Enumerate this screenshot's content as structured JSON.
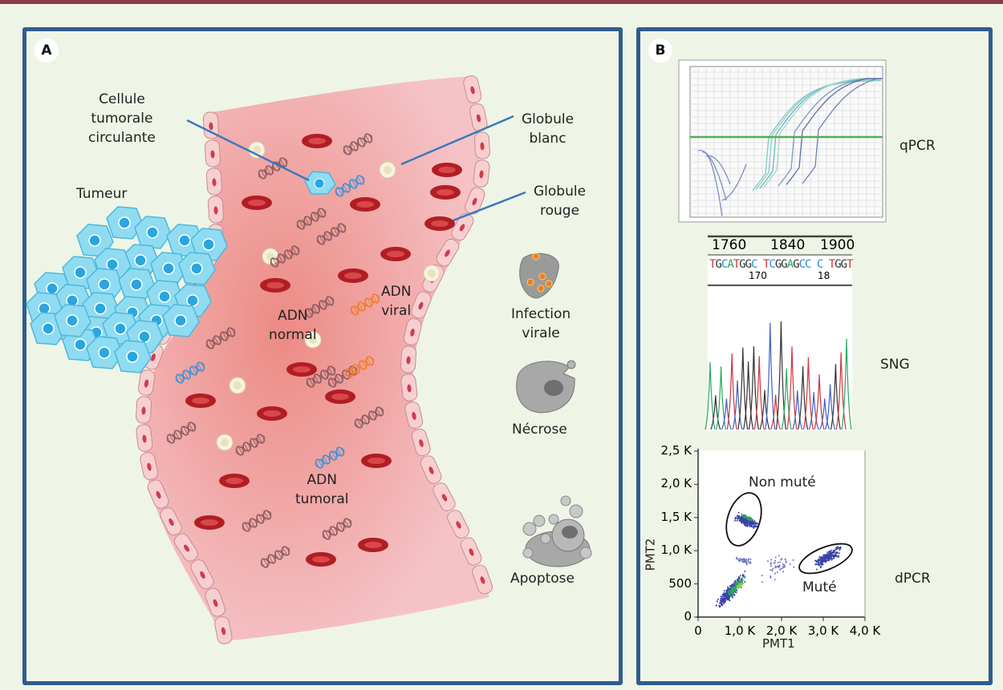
{
  "panel_a": {
    "badge": "A",
    "labels": {
      "ctc": [
        "Cellule",
        "tumorale",
        "circulante"
      ],
      "tumor": "Tumeur",
      "wbc": [
        "Globule",
        "blanc"
      ],
      "rbc": [
        "Globule",
        "rouge"
      ],
      "dna_normal": [
        "ADN",
        "normal"
      ],
      "dna_viral": [
        "ADN",
        "viral"
      ],
      "dna_tumor": [
        "ADN",
        "tumoral"
      ],
      "infection": [
        "Infection",
        "virale"
      ],
      "necrosis": "Nécrose",
      "apoptosis": "Apoptose"
    },
    "colors": {
      "vessel": "#f1b4b8",
      "rbc": "#b01e24",
      "tumor_cell": "#7fd3ec",
      "callout_line": "#3a78c0",
      "dna_viral": "#f07b2a",
      "dna_tumor": "#3f8fd6"
    }
  },
  "panel_b": {
    "badge": "B",
    "qpcr_label": "qPCR",
    "sng_label": "SNG",
    "dpcr_label": "dPCR",
    "sng": {
      "scale_ticks": [
        "1760",
        "1840",
        "1900"
      ],
      "sequence": [
        {
          "b": "T",
          "c": "#d2343c"
        },
        {
          "b": "G",
          "c": "#333"
        },
        {
          "b": "C",
          "c": "#2b8ad1"
        },
        {
          "b": "A",
          "c": "#2aa860"
        },
        {
          "b": "T",
          "c": "#d2343c"
        },
        {
          "b": "G",
          "c": "#333"
        },
        {
          "b": "G",
          "c": "#333"
        },
        {
          "b": "C",
          "c": "#2b8ad1"
        },
        {
          "b": " ",
          "c": "#333"
        },
        {
          "b": "T",
          "c": "#d2343c"
        },
        {
          "b": "C",
          "c": "#2b8ad1"
        },
        {
          "b": "G",
          "c": "#333"
        },
        {
          "b": "G",
          "c": "#333"
        },
        {
          "b": "A",
          "c": "#2aa860"
        },
        {
          "b": "G",
          "c": "#333"
        },
        {
          "b": "C",
          "c": "#2b8ad1"
        },
        {
          "b": "C",
          "c": "#2b8ad1"
        },
        {
          "b": " ",
          "c": "#333"
        },
        {
          "b": "C",
          "c": "#2b8ad1"
        },
        {
          "b": " ",
          "c": "#333"
        },
        {
          "b": "T",
          "c": "#d2343c"
        },
        {
          "b": "G",
          "c": "#333"
        },
        {
          "b": "G",
          "c": "#333"
        },
        {
          "b": "T",
          "c": "#d2343c"
        }
      ],
      "positions": [
        "170",
        "18"
      ]
    },
    "dpcr": {
      "x_label": "PMT1",
      "y_label": "PMT2",
      "x_ticks": [
        "0",
        "1,0 K",
        "2,0 K",
        "3,0 K",
        "4,0 K"
      ],
      "y_ticks": [
        "0",
        "500",
        "1,0 K",
        "1,5 K",
        "2,0 K",
        "2,5 K"
      ],
      "clusters": [
        {
          "label": "Non muté",
          "center": [
            1150,
            1450
          ]
        },
        {
          "label": "Muté",
          "center": [
            3150,
            900
          ]
        }
      ]
    },
    "qpcr": {
      "threshold_color": "#4caf50"
    }
  }
}
